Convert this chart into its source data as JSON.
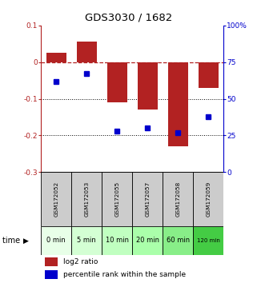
{
  "title": "GDS3030 / 1682",
  "samples": [
    "GSM172052",
    "GSM172053",
    "GSM172055",
    "GSM172057",
    "GSM172058",
    "GSM172059"
  ],
  "time_labels": [
    "0 min",
    "5 min",
    "10 min",
    "20 min",
    "60 min",
    "120 min"
  ],
  "log2_ratio": [
    0.025,
    0.055,
    -0.11,
    -0.13,
    -0.23,
    -0.07
  ],
  "percentile_rank": [
    62,
    67,
    28,
    30,
    27,
    38
  ],
  "bar_color": "#b22222",
  "dot_color": "#0000cc",
  "ylim_left": [
    -0.3,
    0.1
  ],
  "ylim_right": [
    0,
    100
  ],
  "yticks_left": [
    0.1,
    0.0,
    -0.1,
    -0.2,
    -0.3
  ],
  "yticks_right": [
    100,
    75,
    50,
    25,
    0
  ],
  "ytick_labels_left": [
    "0.1",
    "0",
    "-0.1",
    "-0.2",
    "-0.3"
  ],
  "ytick_labels_right": [
    "100%",
    "75",
    "50",
    "25",
    "0"
  ],
  "bg_gray": "#cccccc",
  "green_colors": [
    "#e8ffe8",
    "#d4ffd4",
    "#c0ffc0",
    "#aaffaa",
    "#88ee88",
    "#44cc44"
  ],
  "legend_log2": "log2 ratio",
  "legend_pct": "percentile rank within the sample"
}
